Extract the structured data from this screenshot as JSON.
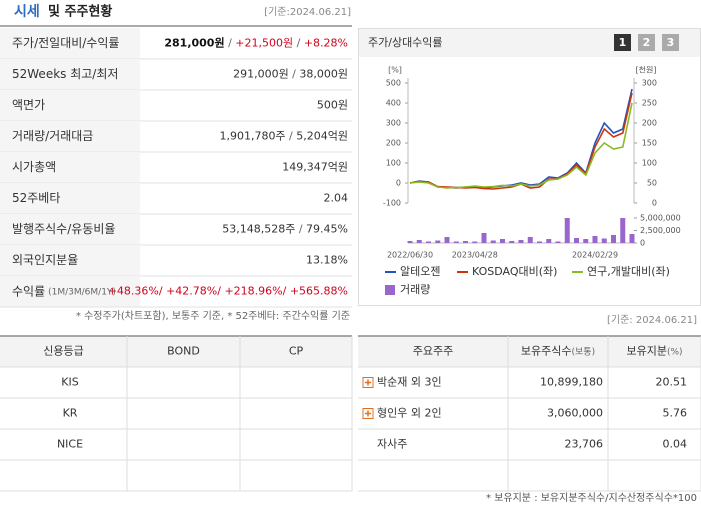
{
  "header": {
    "title": "시세",
    "subtitle": "및 주주현황",
    "date": "[기준:2024.06.21]"
  },
  "quote_table": {
    "sep": " / ",
    "rows": [
      {
        "label": "주가/전일대비/수익률",
        "parts": [
          "281,000원",
          "+21,500원",
          "+8.28%"
        ]
      },
      {
        "label": "52Weeks 최고/최저",
        "parts": [
          "291,000원",
          "38,000원"
        ]
      },
      {
        "label": "액면가",
        "parts": [
          "500원"
        ]
      },
      {
        "label": "거래량/거래대금",
        "parts": [
          "1,901,780주",
          "5,204억원"
        ]
      },
      {
        "label": "시가총액",
        "parts": [
          "149,347억원"
        ]
      },
      {
        "label": "52주베타",
        "parts": [
          "2.04"
        ]
      },
      {
        "label": "발행주식수/유동비율",
        "parts": [
          "53,148,528주",
          "79.45%"
        ]
      },
      {
        "label": "외국인지분율",
        "parts": [
          "13.18%"
        ]
      }
    ],
    "returns": {
      "label": "수익률",
      "sublabel": "(1M/3M/6M/1Y)",
      "sep": "/ ",
      "values": [
        "+48.36%",
        "+42.78%",
        "+218.96%",
        "+565.88%"
      ]
    },
    "note": "* 수정주가(차트포함), 보통주 기준, * 52주베타: 주간수익률 기준"
  },
  "chart_panel": {
    "title": "주가/상대수익률",
    "tabs": [
      "1",
      "2",
      "3"
    ]
  },
  "chart_data": {
    "type": "line",
    "y_unit": "[%]",
    "y2_unit": "[천원]",
    "categories": [
      "2022/06/30",
      null,
      null,
      null,
      null,
      null,
      null,
      "2023/04/28",
      null,
      null,
      null,
      null,
      null,
      null,
      null,
      null,
      null,
      null,
      null,
      null,
      "2024/02/29",
      null,
      null,
      null,
      null
    ],
    "ylim": [
      -100,
      500
    ],
    "yticks": [
      -100,
      0,
      100,
      200,
      300,
      400,
      500
    ],
    "y2lim": [
      0,
      300
    ],
    "y2ticks": [
      0,
      50,
      100,
      150,
      200,
      250,
      300
    ],
    "vlim": [
      0,
      5000000
    ],
    "vticks": [
      {
        "value": 0,
        "label": "0"
      },
      {
        "value": 2500000,
        "label": "2,500,000"
      },
      {
        "value": 5000000,
        "label": "5,000,000"
      }
    ],
    "grid": false,
    "series": [
      {
        "name": "알테오젠",
        "color": "#2255bb",
        "values": [
          0,
          10,
          5,
          -20,
          -22,
          -25,
          -20,
          -18,
          -25,
          -20,
          -15,
          -10,
          0,
          -10,
          -5,
          30,
          25,
          50,
          100,
          50,
          200,
          300,
          250,
          270,
          470
        ]
      },
      {
        "name": "KOSDAQ대비(좌)",
        "color": "#cc3311",
        "values": [
          0,
          8,
          5,
          -18,
          -20,
          -22,
          -25,
          -22,
          -28,
          -30,
          -25,
          -20,
          -5,
          -25,
          -20,
          20,
          20,
          45,
          90,
          45,
          180,
          270,
          230,
          250,
          450
        ]
      },
      {
        "name": "연구,개발대비(좌)",
        "color": "#88bb22",
        "values": [
          0,
          5,
          0,
          -20,
          -25,
          -22,
          -20,
          -15,
          -20,
          -18,
          -12,
          -15,
          -5,
          -15,
          -10,
          15,
          20,
          40,
          80,
          40,
          150,
          200,
          170,
          180,
          400
        ]
      }
    ],
    "volume": {
      "name": "거래량",
      "color": "#9966cc",
      "values": [
        400000,
        600000,
        300000,
        500000,
        1200000,
        300000,
        400000,
        300000,
        2000000,
        500000,
        800000,
        400000,
        600000,
        1200000,
        300000,
        800000,
        300000,
        5000000,
        1000000,
        800000,
        1400000,
        900000,
        1600000,
        5000000,
        1800000
      ]
    }
  },
  "date2": "[기준: 2024.06.21]",
  "credit_table": {
    "headers": [
      "신용등급",
      "BOND",
      "CP"
    ],
    "agencies": [
      "KIS",
      "KR",
      "NICE"
    ]
  },
  "holder_table": {
    "headers": [
      {
        "text": "주요주주"
      },
      {
        "text": "보유주식수",
        "sub": "(보통)"
      },
      {
        "text": "보유지분",
        "sub": "(%)"
      }
    ],
    "rows": [
      {
        "name": "박순재 외 3인",
        "shares": "10,899,180",
        "pct": "20.51",
        "expand": true
      },
      {
        "name": "형인우 외 2인",
        "shares": "3,060,000",
        "pct": "5.76",
        "expand": true
      },
      {
        "name": "자사주",
        "shares": "23,706",
        "pct": "0.04",
        "expand": false
      }
    ],
    "note": "* 보유지분 : 보유지분주식수/지수산정주식수*100"
  }
}
